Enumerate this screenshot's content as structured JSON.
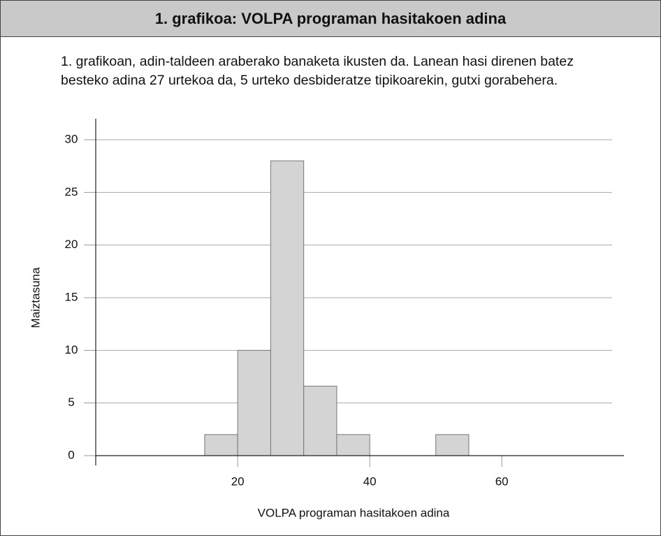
{
  "header": {
    "title": "1. grafikoa: VOLPA programan hasitakoen adina"
  },
  "paragraph": "1. grafikoan, adin-taldeen araberako banaketa ikusten da. Lanean hasi direnen batez besteko adina 27 urtekoa da, 5 urteko desbideratze tipikoarekin, gutxi gorabehera.",
  "chart_data": {
    "type": "histogram",
    "bins": [
      15,
      20,
      25,
      30,
      35,
      40,
      45,
      50,
      55
    ],
    "values": [
      2,
      10,
      28,
      6.6,
      2,
      0,
      0,
      2
    ],
    "color": "#d4d4d4",
    "xlabel": "VOLPA programan hasitakoen adina",
    "ylabel": "Maiztasuna",
    "xlim": [
      -1.5,
      78.5
    ],
    "xticks": [
      20,
      40,
      60
    ],
    "ylim": [
      0,
      30
    ],
    "yticks": [
      0,
      5,
      10,
      15,
      20,
      25,
      30
    ],
    "grid": true
  }
}
